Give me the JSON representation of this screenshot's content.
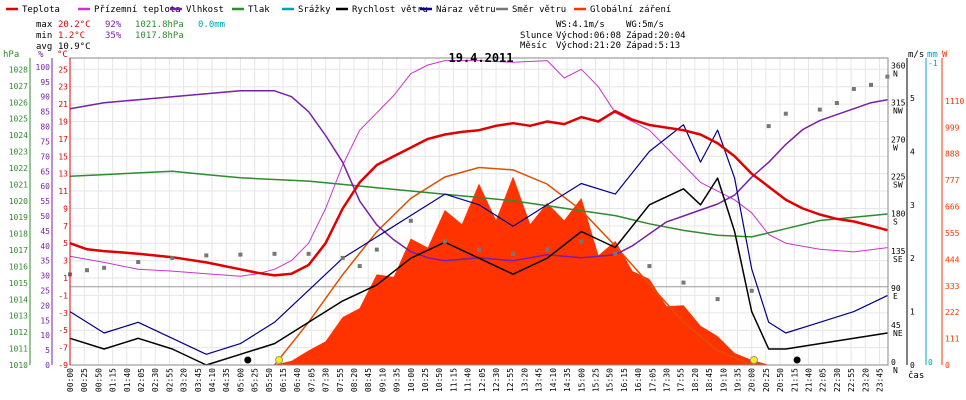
{
  "chart_data": {
    "type": "line",
    "title": "19.4.2011",
    "xlabel": "čas",
    "legend": [
      {
        "name": "Teplota",
        "color": "#e00000"
      },
      {
        "name": "Přízemní teplota",
        "color": "#cc33cc"
      },
      {
        "name": "Vlhkost",
        "color": "#7a1fa8"
      },
      {
        "name": "Tlak",
        "color": "#2e8b2e"
      },
      {
        "name": "Srážky",
        "color": "#00a0c0"
      },
      {
        "name": "Rychlost větru",
        "color": "#000000"
      },
      {
        "name": "Náraz větru",
        "color": "#00008b"
      },
      {
        "name": "Směr větru",
        "color": "#777777"
      },
      {
        "name": "Globální záření",
        "color": "#ff3300"
      }
    ],
    "stats": {
      "max": {
        "label": "max",
        "temp": "20.2°C",
        "hum": "92%",
        "press": "1021.8hPa",
        "rain": "0.0mm"
      },
      "min": {
        "label": "min",
        "temp": "1.2°C",
        "hum": "35%",
        "press": "1017.8hPa"
      },
      "avg": {
        "label": "avg",
        "temp": "10.9°C"
      }
    },
    "info": {
      "ws": "WS:4.1m/s",
      "wg": "WG:5m/s",
      "sun_label": "Slunce",
      "sun_rise": "Východ:06:08",
      "sun_set": "Západ:20:04",
      "moon_label": "Měsíc",
      "moon_rise": "Východ:21:20",
      "moon_set": "Západ:5:13"
    },
    "axis_units": {
      "hpa": "hPa",
      "pct": "%",
      "degc": "°C",
      "ms": "m/s",
      "mm": "mm",
      "w": "W"
    },
    "axes": {
      "hpa_ticks": [
        1010,
        1011,
        1012,
        1013,
        1014,
        1015,
        1016,
        1017,
        1018,
        1019,
        1020,
        1021,
        1022,
        1023,
        1024,
        1025,
        1026,
        1027,
        1028
      ],
      "pct_ticks": [
        0,
        5,
        10,
        15,
        20,
        25,
        30,
        35,
        40,
        45,
        50,
        55,
        60,
        65,
        70,
        75,
        80,
        85,
        90,
        95,
        100
      ],
      "temp_ticks": [
        -9,
        -7,
        -5,
        -3,
        -1,
        1,
        3,
        5,
        7,
        9,
        11,
        13,
        15,
        17,
        19,
        21,
        23,
        25
      ],
      "dir_ticks": [
        {
          "deg": 0,
          "val": "0",
          "lbl": "N"
        },
        {
          "deg": 45,
          "val": "45",
          "lbl": "NE"
        },
        {
          "deg": 90,
          "val": "90",
          "lbl": "E"
        },
        {
          "deg": 135,
          "val": "135",
          "lbl": "SE"
        },
        {
          "deg": 180,
          "val": "180",
          "lbl": "S"
        },
        {
          "deg": 225,
          "val": "225",
          "lbl": "SW"
        },
        {
          "deg": 270,
          "val": "270",
          "lbl": "W"
        },
        {
          "deg": 315,
          "val": "315",
          "lbl": "NW"
        },
        {
          "deg": 360,
          "val": "360",
          "lbl": "N"
        }
      ],
      "ms_ticks": [
        0,
        1,
        2,
        3,
        4,
        5
      ],
      "mm_ticks": [
        0,
        -1
      ],
      "w_ticks": [
        0,
        111,
        222,
        333,
        444,
        555,
        666,
        777,
        888,
        999,
        1110
      ],
      "x_ticks": [
        "00:00",
        "00:25",
        "00:50",
        "01:15",
        "01:40",
        "02:05",
        "02:30",
        "02:55",
        "03:20",
        "03:45",
        "04:10",
        "04:35",
        "05:00",
        "05:25",
        "05:50",
        "06:15",
        "06:40",
        "07:05",
        "07:30",
        "07:55",
        "08:20",
        "08:45",
        "09:10",
        "09:35",
        "10:00",
        "10:25",
        "10:50",
        "11:15",
        "11:40",
        "12:05",
        "12:30",
        "12:55",
        "13:20",
        "13:45",
        "14:10",
        "14:35",
        "15:00",
        "15:25",
        "15:50",
        "16:15",
        "16:40",
        "17:05",
        "17:30",
        "17:55",
        "18:20",
        "18:45",
        "19:10",
        "19:35",
        "20:00",
        "20:25",
        "20:50",
        "21:15",
        "21:40",
        "22:05",
        "22:30",
        "22:55",
        "23:20",
        "23:45"
      ]
    },
    "series": {
      "temperature": {
        "name": "Teplota",
        "unit": "°C",
        "x": [
          "00:00",
          "00:30",
          "01:00",
          "02:00",
          "03:00",
          "04:00",
          "05:00",
          "05:30",
          "06:00",
          "06:30",
          "07:00",
          "07:30",
          "08:00",
          "08:30",
          "09:00",
          "09:30",
          "10:00",
          "10:30",
          "11:00",
          "11:30",
          "12:00",
          "12:30",
          "13:00",
          "13:30",
          "14:00",
          "14:30",
          "15:00",
          "15:30",
          "16:00",
          "16:30",
          "17:00",
          "17:30",
          "18:00",
          "18:30",
          "19:00",
          "19:30",
          "20:00",
          "20:30",
          "21:00",
          "21:30",
          "22:00",
          "22:30",
          "23:00",
          "23:30",
          "23:59"
        ],
        "y": [
          5.0,
          4.3,
          4.1,
          3.8,
          3.4,
          2.8,
          2.0,
          1.6,
          1.3,
          1.5,
          2.5,
          5.0,
          9.0,
          12.0,
          14.0,
          15.0,
          16.0,
          17.0,
          17.5,
          17.8,
          18.0,
          18.5,
          18.8,
          18.5,
          19.0,
          18.7,
          19.5,
          19.0,
          20.2,
          19.2,
          18.6,
          18.3,
          18.0,
          17.5,
          16.5,
          15.0,
          13.0,
          11.5,
          10.0,
          9.0,
          8.3,
          7.8,
          7.5,
          7.0,
          6.5
        ]
      },
      "ground_temperature": {
        "name": "Přízemní teplota",
        "unit": "°C",
        "x": [
          "00:00",
          "01:00",
          "02:00",
          "03:00",
          "04:00",
          "05:00",
          "05:30",
          "06:00",
          "06:30",
          "07:00",
          "07:30",
          "08:00",
          "08:30",
          "09:00",
          "09:30",
          "10:00",
          "10:30",
          "11:00",
          "12:00",
          "13:00",
          "14:00",
          "14:30",
          "15:00",
          "15:30",
          "16:00",
          "16:30",
          "17:00",
          "17:30",
          "18:00",
          "18:30",
          "19:00",
          "19:30",
          "20:00",
          "20:30",
          "21:00",
          "22:00",
          "23:00",
          "23:59"
        ],
        "y": [
          3.5,
          2.8,
          2.0,
          1.8,
          1.5,
          1.2,
          1.5,
          2.0,
          3.0,
          5.0,
          9.0,
          14.0,
          18.0,
          20.0,
          22.0,
          24.5,
          25.5,
          26.0,
          26.0,
          25.8,
          26.0,
          24.0,
          25.0,
          23.0,
          20.0,
          19.0,
          18.0,
          16.0,
          14.0,
          12.0,
          11.0,
          10.0,
          8.5,
          6.0,
          5.0,
          4.3,
          4.0,
          4.5
        ]
      },
      "humidity": {
        "name": "Vlhkost",
        "unit": "%",
        "x": [
          "00:00",
          "01:00",
          "02:00",
          "03:00",
          "04:00",
          "05:00",
          "05:30",
          "06:00",
          "06:30",
          "07:00",
          "07:30",
          "08:00",
          "08:30",
          "09:00",
          "09:30",
          "10:00",
          "10:30",
          "11:00",
          "12:00",
          "13:00",
          "14:00",
          "15:00",
          "16:00",
          "16:30",
          "17:00",
          "17:30",
          "18:00",
          "18:30",
          "19:00",
          "19:30",
          "20:00",
          "20:30",
          "21:00",
          "21:30",
          "22:00",
          "22:30",
          "23:00",
          "23:30",
          "23:59"
        ],
        "y": [
          86,
          88,
          89,
          90,
          91,
          92,
          92,
          92,
          90,
          85,
          77,
          68,
          55,
          47,
          42,
          38,
          36,
          35,
          36,
          35,
          37,
          36,
          37,
          40,
          44,
          48,
          50,
          52,
          54,
          57,
          63,
          68,
          74,
          79,
          82,
          84,
          86,
          88,
          89
        ]
      },
      "pressure": {
        "name": "Tlak",
        "unit": "hPa",
        "x": [
          "00:00",
          "01:00",
          "02:00",
          "03:00",
          "04:00",
          "05:00",
          "06:00",
          "07:00",
          "08:00",
          "09:00",
          "10:00",
          "11:00",
          "12:00",
          "13:00",
          "14:00",
          "15:00",
          "16:00",
          "17:00",
          "18:00",
          "19:00",
          "20:00",
          "21:00",
          "22:00",
          "23:00",
          "23:59"
        ],
        "y": [
          1021.5,
          1021.6,
          1021.7,
          1021.8,
          1021.6,
          1021.4,
          1021.3,
          1021.2,
          1021.0,
          1020.8,
          1020.6,
          1020.4,
          1020.2,
          1020.0,
          1019.7,
          1019.4,
          1019.1,
          1018.6,
          1018.2,
          1017.9,
          1017.8,
          1018.3,
          1018.8,
          1019.0,
          1019.2
        ]
      },
      "wind_speed": {
        "name": "Rychlost větru",
        "unit": "m/s",
        "x": [
          "00:00",
          "01:00",
          "02:00",
          "03:00",
          "04:00",
          "05:00",
          "06:00",
          "07:00",
          "08:00",
          "09:00",
          "10:00",
          "11:00",
          "12:00",
          "13:00",
          "14:00",
          "15:00",
          "16:00",
          "17:00",
          "18:00",
          "18:30",
          "19:00",
          "19:30",
          "20:00",
          "20:30",
          "21:00",
          "22:00",
          "23:00",
          "23:59"
        ],
        "y": [
          0.5,
          0.3,
          0.5,
          0.3,
          0.0,
          0.2,
          0.4,
          0.8,
          1.2,
          1.5,
          2.0,
          2.3,
          2.0,
          1.7,
          2.0,
          2.5,
          2.2,
          3.0,
          3.3,
          3.0,
          3.5,
          2.5,
          1.0,
          0.3,
          0.3,
          0.4,
          0.5,
          0.6
        ]
      },
      "wind_gust": {
        "name": "Náraz větru",
        "unit": "m/s",
        "x": [
          "00:00",
          "01:00",
          "02:00",
          "03:00",
          "04:00",
          "05:00",
          "06:00",
          "07:00",
          "08:00",
          "09:00",
          "10:00",
          "11:00",
          "12:00",
          "13:00",
          "14:00",
          "15:00",
          "16:00",
          "17:00",
          "18:00",
          "18:30",
          "19:00",
          "19:30",
          "20:00",
          "20:30",
          "21:00",
          "22:00",
          "23:00",
          "23:59"
        ],
        "y": [
          1.0,
          0.6,
          0.8,
          0.5,
          0.2,
          0.4,
          0.8,
          1.4,
          2.0,
          2.4,
          2.8,
          3.2,
          3.0,
          2.6,
          3.0,
          3.4,
          3.2,
          4.0,
          4.5,
          3.8,
          4.4,
          3.5,
          1.8,
          0.8,
          0.6,
          0.8,
          1.0,
          1.3
        ]
      },
      "wind_direction": {
        "name": "Směr větru",
        "unit": "°",
        "x": [
          "00:00",
          "00:30",
          "01:00",
          "02:00",
          "03:00",
          "04:00",
          "05:00",
          "06:00",
          "07:00",
          "08:00",
          "08:30",
          "09:00",
          "10:00",
          "11:00",
          "12:00",
          "13:00",
          "14:00",
          "15:00",
          "16:00",
          "17:00",
          "18:00",
          "19:00",
          "20:00",
          "20:30",
          "21:00",
          "22:00",
          "22:30",
          "23:00",
          "23:30",
          "23:59"
        ],
        "y": [
          110,
          115,
          118,
          125,
          130,
          133,
          134,
          135,
          135,
          130,
          120,
          140,
          175,
          150,
          140,
          135,
          140,
          150,
          135,
          120,
          100,
          80,
          90,
          290,
          305,
          310,
          318,
          335,
          340,
          350
        ]
      },
      "solar_radiation": {
        "name": "Globální záření",
        "unit": "W",
        "x": [
          "06:00",
          "06:30",
          "07:00",
          "07:30",
          "08:00",
          "08:30",
          "09:00",
          "09:30",
          "10:00",
          "10:30",
          "11:00",
          "11:30",
          "12:00",
          "12:30",
          "13:00",
          "13:30",
          "14:00",
          "14:30",
          "15:00",
          "15:30",
          "16:00",
          "16:30",
          "17:00",
          "17:30",
          "18:00",
          "18:30",
          "19:00",
          "19:30",
          "20:00",
          "20:30"
        ],
        "y": [
          0,
          20,
          60,
          120,
          200,
          290,
          380,
          450,
          530,
          600,
          650,
          720,
          760,
          740,
          790,
          720,
          680,
          740,
          700,
          560,
          520,
          480,
          360,
          300,
          250,
          200,
          120,
          60,
          20,
          0
        ]
      },
      "solar_clear_sky": {
        "name": "Globální záření",
        "unit": "W",
        "x": [
          "06:00",
          "07:00",
          "08:00",
          "09:00",
          "10:00",
          "11:00",
          "12:00",
          "13:00",
          "14:00",
          "15:00",
          "16:00",
          "17:00",
          "18:00",
          "19:00",
          "20:00"
        ],
        "y": [
          0,
          180,
          380,
          560,
          700,
          790,
          830,
          820,
          760,
          650,
          500,
          340,
          180,
          60,
          0
        ]
      }
    }
  }
}
